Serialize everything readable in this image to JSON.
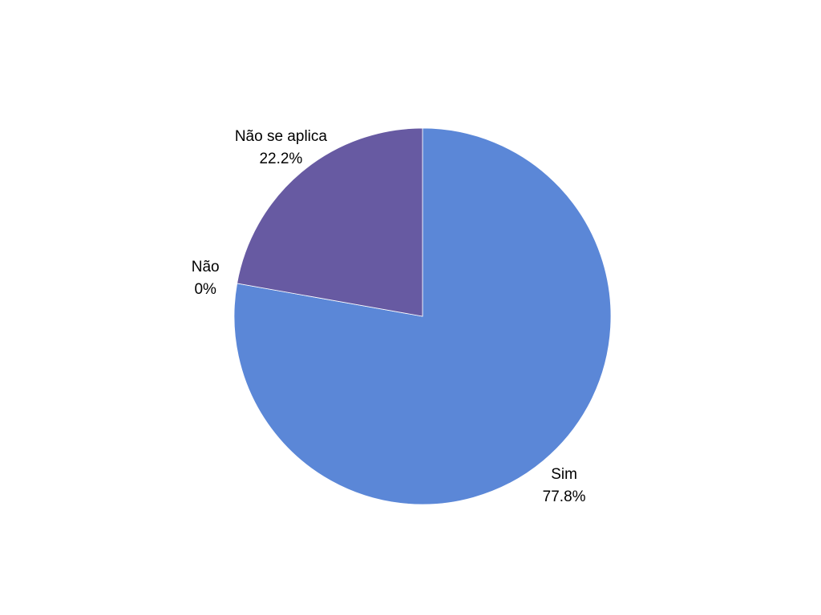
{
  "chart_data": {
    "type": "pie",
    "start_angle_deg": 0,
    "direction": "clockwise",
    "slices": [
      {
        "name": "Sim",
        "value": 77.8,
        "label": "77.8%",
        "color": "#5B87D7"
      },
      {
        "name": "Não",
        "value": 0,
        "label": "0%",
        "color": "#7A8FD6"
      },
      {
        "name": "Não se aplica",
        "value": 22.2,
        "label": "22.2%",
        "color": "#675AA2"
      }
    ]
  }
}
